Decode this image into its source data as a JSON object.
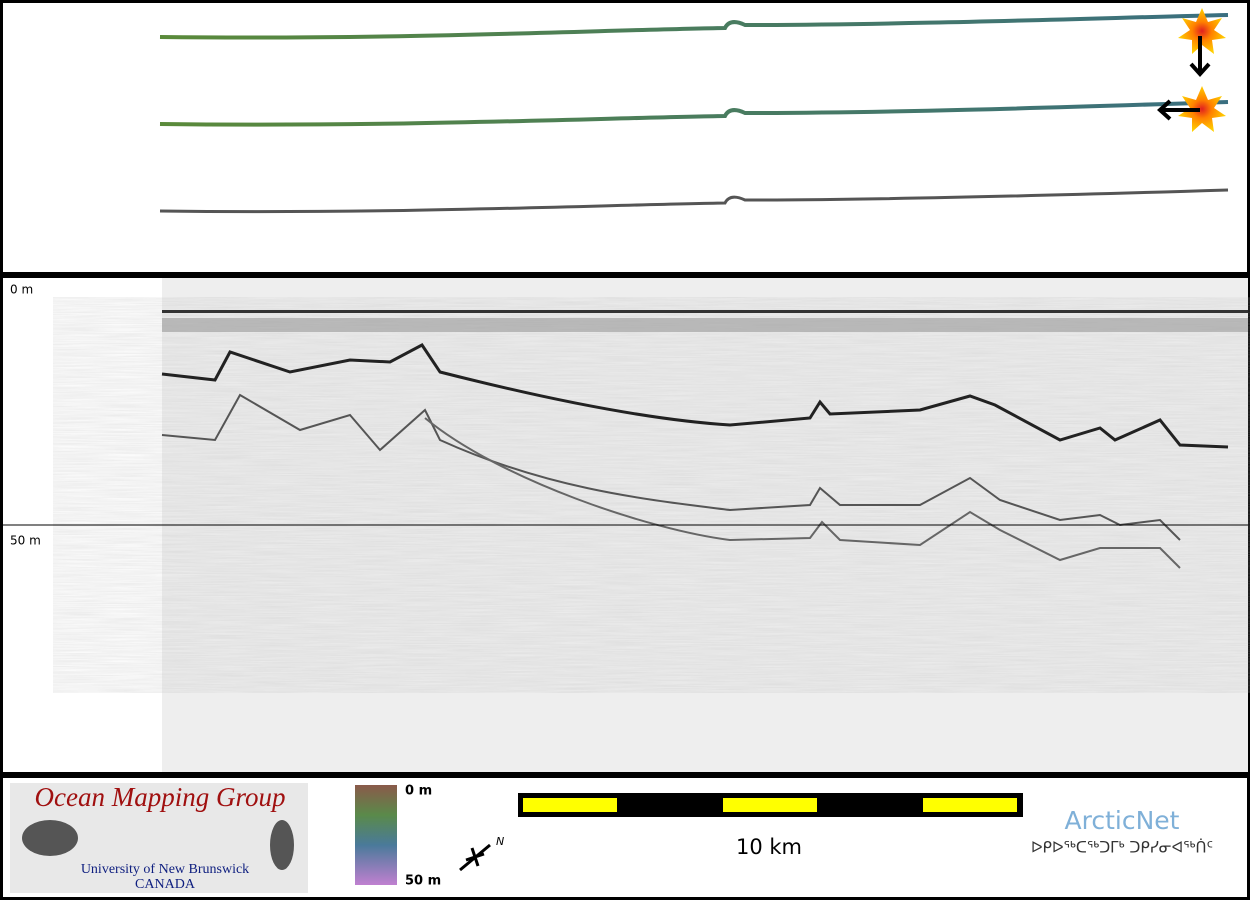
{
  "profile": {
    "depth_top": "0 m",
    "depth_mid": "50 m"
  },
  "footer": {
    "logo_title": "Ocean Mapping Group",
    "logo_university": "University of New Brunswick",
    "logo_country": "CANADA",
    "colorbar_top": "0 m",
    "colorbar_bottom": "50 m",
    "scale_label": "10 km",
    "partner": "ArcticNet",
    "partner_syllabics": "ᐅᑭᐅᖅᑕᖅᑐᒥᒃ ᑐᑭᓯᓂᐊᖅᑏᑦ"
  }
}
